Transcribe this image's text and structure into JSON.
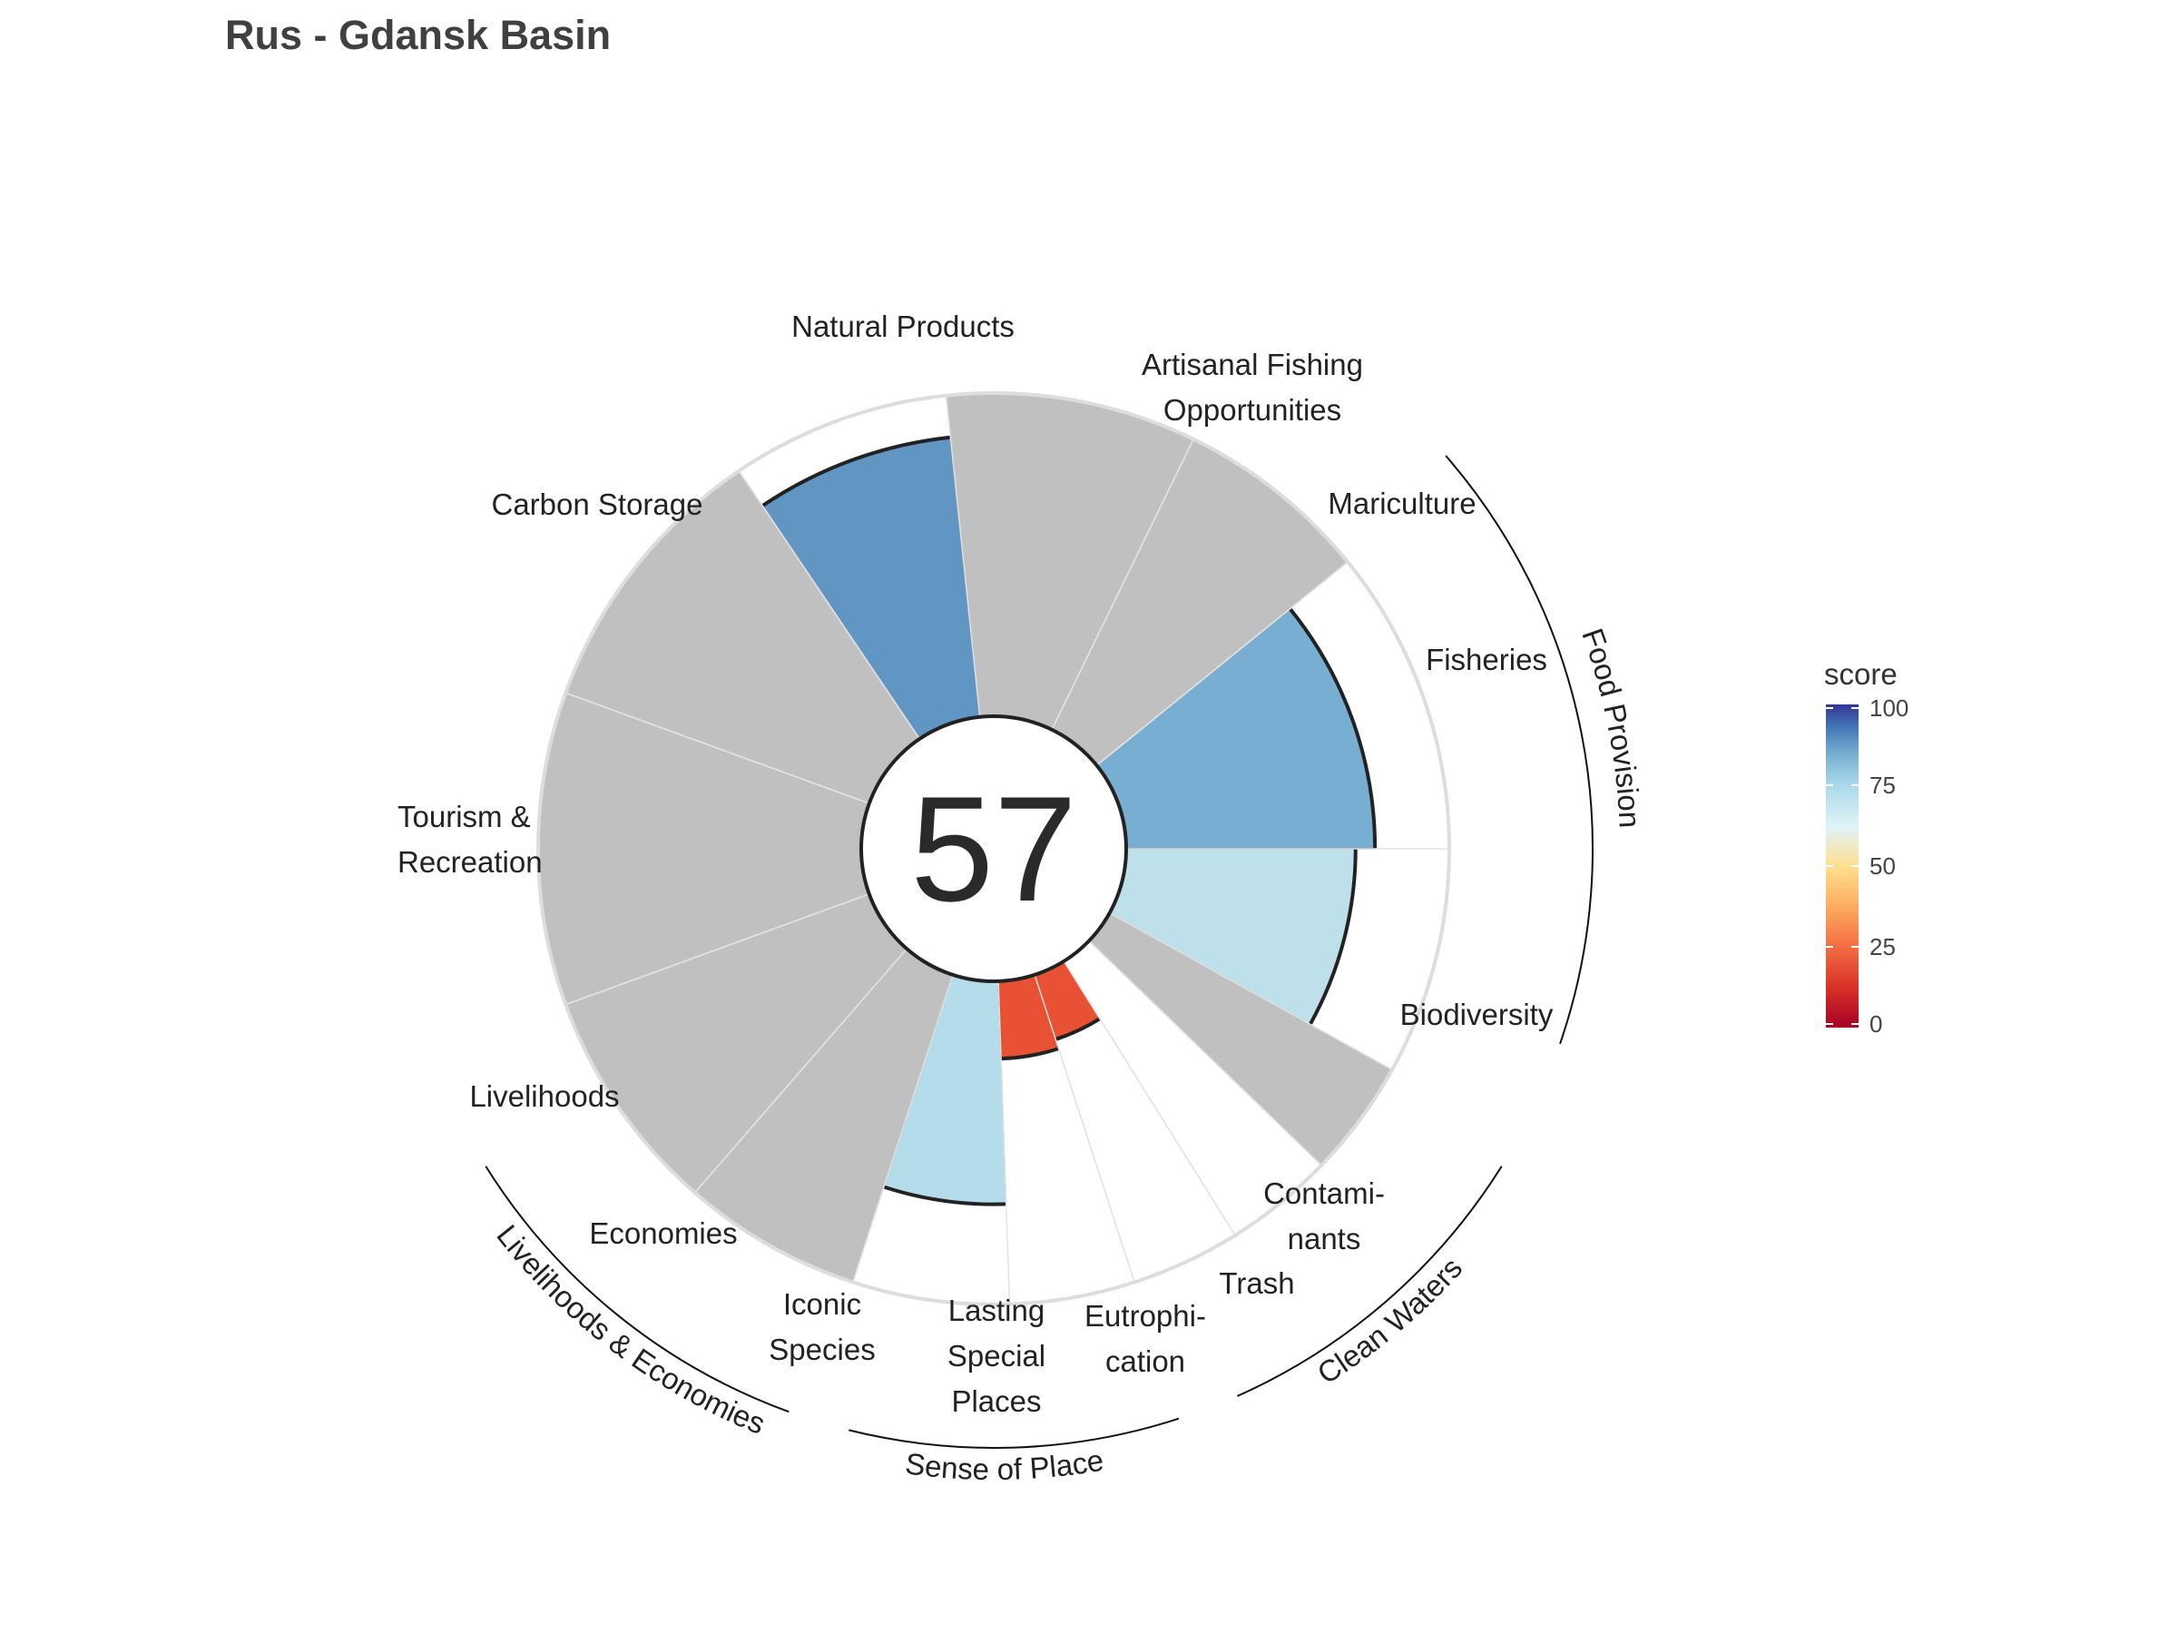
{
  "chart_data": {
    "type": "polar-bar",
    "title": "Rus - Gdansk Basin",
    "center_score": "57",
    "colors": {
      "na": "#c0c0c0",
      "outline": "#222222",
      "ring": "#dddddd"
    },
    "goals": [
      {
        "name": "Fisheries",
        "lines": [
          "Fisheries"
        ],
        "score": 77,
        "color": "#78aed2"
      },
      {
        "name": "Mariculture",
        "lines": [
          "Mariculture"
        ],
        "score": null,
        "color": "#c0c0c0"
      },
      {
        "name": "Artisanal Fishing Opportunities",
        "lines": [
          "Artisanal Fishing",
          "Opportunities"
        ],
        "score": null,
        "color": "#c0c0c0"
      },
      {
        "name": "Natural Products",
        "lines": [
          "Natural Products"
        ],
        "score": 87,
        "color": "#6196c3"
      },
      {
        "name": "Carbon Storage",
        "lines": [
          "Carbon Storage"
        ],
        "score": null,
        "color": "#c0c0c0"
      },
      {
        "name": "Tourism & Recreation",
        "lines": [
          "Tourism &",
          "Recreation"
        ],
        "score": null,
        "color": "#c0c0c0"
      },
      {
        "name": "Livelihoods",
        "lines": [
          "Livelihoods"
        ],
        "score": null,
        "color": "#c0c0c0"
      },
      {
        "name": "Economies",
        "lines": [
          "Economies"
        ],
        "score": null,
        "color": "#c0c0c0"
      },
      {
        "name": "Iconic Species",
        "lines": [
          "Iconic",
          "Species"
        ],
        "score": 69,
        "color": "#b5dcea"
      },
      {
        "name": "Lasting Special Places",
        "lines": [
          "Lasting",
          "Special",
          "Places"
        ],
        "score": 24,
        "color": "#e85133"
      },
      {
        "name": "Eutrophication",
        "lines": [
          "Eutrophi-",
          "cation"
        ],
        "score": 21,
        "color": "#e85133"
      },
      {
        "name": "Trash",
        "lines": [
          "Trash"
        ],
        "score": null,
        "color": "#ffffff"
      },
      {
        "name": "Contaminants",
        "lines": [
          "Contami-",
          "nants"
        ],
        "score": null,
        "color": "#c0c0c0"
      },
      {
        "name": "Biodiversity",
        "lines": [
          "Biodiversity"
        ],
        "score": 71,
        "color": "#bde0eb"
      }
    ],
    "groups": [
      "Food Provision",
      "Livelihoods & Economies",
      "Sense of Place",
      "Clean Waters"
    ],
    "legend": {
      "title": "score",
      "ticks": [
        "0",
        "25",
        "50",
        "75",
        "100"
      ],
      "stops": [
        "#a50026",
        "#d73027",
        "#f46d43",
        "#fdae61",
        "#fee090",
        "#e0f3f8",
        "#abd9e9",
        "#74add1",
        "#4575b4",
        "#313695"
      ]
    }
  }
}
